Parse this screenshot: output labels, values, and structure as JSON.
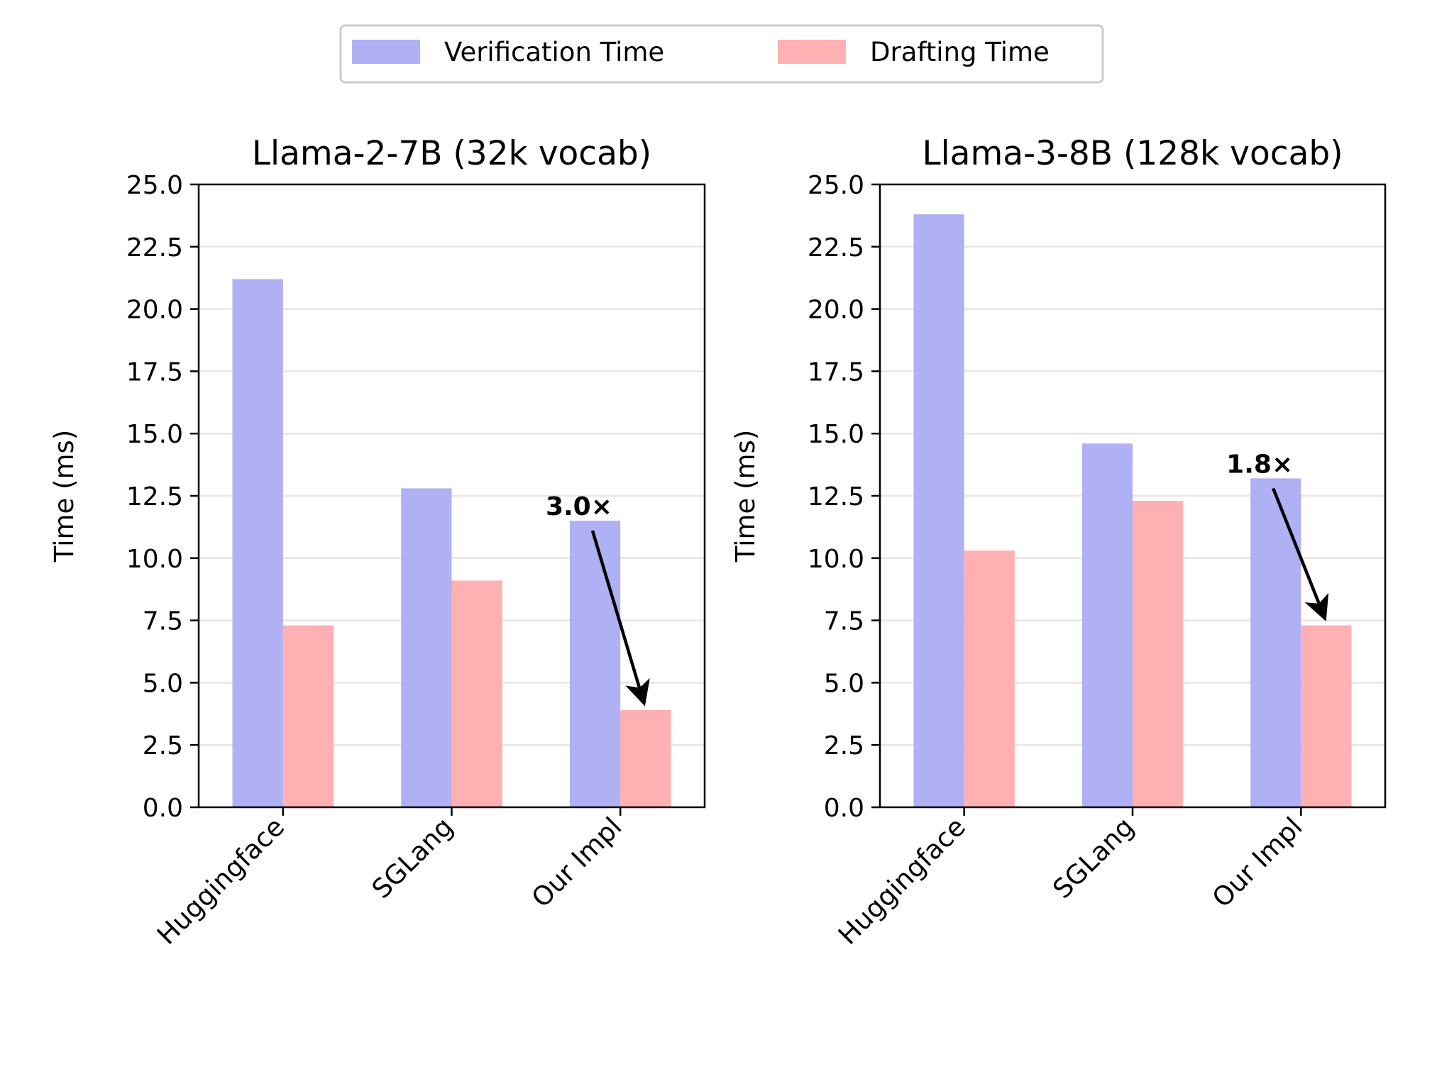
{
  "legend": {
    "items": [
      {
        "label": "Verification Time",
        "color": "#b0b0f5"
      },
      {
        "label": "Drafting Time",
        "color": "#ffb0b2"
      }
    ]
  },
  "chart_data": [
    {
      "type": "bar",
      "title": "Llama-2-7B (32k vocab)",
      "ylabel": "Time (ms)",
      "xlabel": "",
      "ylim": [
        0,
        25
      ],
      "yticks": [
        "0.0",
        "2.5",
        "5.0",
        "7.5",
        "10.0",
        "12.5",
        "15.0",
        "17.5",
        "20.0",
        "22.5",
        "25.0"
      ],
      "grid": "horizontal",
      "categories": [
        "Huggingface",
        "SGLang",
        "Our Impl"
      ],
      "series": [
        {
          "name": "Verification Time",
          "values": [
            21.2,
            12.8,
            11.5
          ]
        },
        {
          "name": "Drafting Time",
          "values": [
            7.3,
            9.1,
            3.9
          ]
        }
      ],
      "annotation": {
        "text": "3.0×",
        "from_value": 11.5,
        "to_value": 3.9
      }
    },
    {
      "type": "bar",
      "title": "Llama-3-8B (128k vocab)",
      "ylabel": "Time (ms)",
      "xlabel": "",
      "ylim": [
        0,
        25
      ],
      "yticks": [
        "0.0",
        "2.5",
        "5.0",
        "7.5",
        "10.0",
        "12.5",
        "15.0",
        "17.5",
        "20.0",
        "22.5",
        "25.0"
      ],
      "grid": "horizontal",
      "categories": [
        "Huggingface",
        "SGLang",
        "Our Impl"
      ],
      "series": [
        {
          "name": "Verification Time",
          "values": [
            23.8,
            14.6,
            13.2
          ]
        },
        {
          "name": "Drafting Time",
          "values": [
            10.3,
            12.3,
            7.3
          ]
        }
      ],
      "annotation": {
        "text": "1.8×",
        "from_value": 13.2,
        "to_value": 7.3
      }
    }
  ]
}
